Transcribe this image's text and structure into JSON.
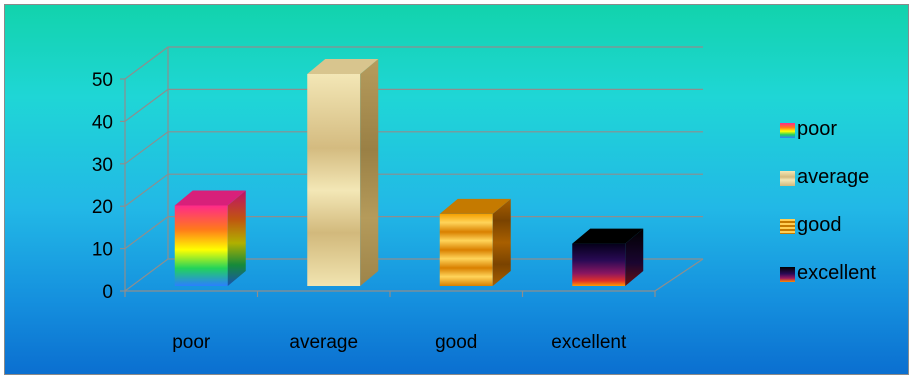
{
  "chart_data": {
    "type": "bar",
    "categories": [
      "poor",
      "average",
      "good",
      "excellent"
    ],
    "values": [
      19,
      50,
      17,
      10
    ],
    "ylim": [
      0,
      50
    ],
    "yticks": [
      "0",
      "10",
      "20",
      "30",
      "40",
      "50"
    ],
    "grid": true,
    "legend_position": "right",
    "style": "3d-column",
    "colors": {
      "poor": [
        "#ff2a8a",
        "#ff7a00",
        "#ffff00",
        "#23d35a",
        "#2a7fff"
      ],
      "average": [
        "#cbb27a",
        "#f2e6b3",
        "#c5ac72"
      ],
      "good": [
        "#e88f00",
        "#ffcf55",
        "#b86a00"
      ],
      "excellent": [
        "#000000",
        "#2a0a55",
        "#9a1a60",
        "#ff8a00"
      ]
    }
  }
}
